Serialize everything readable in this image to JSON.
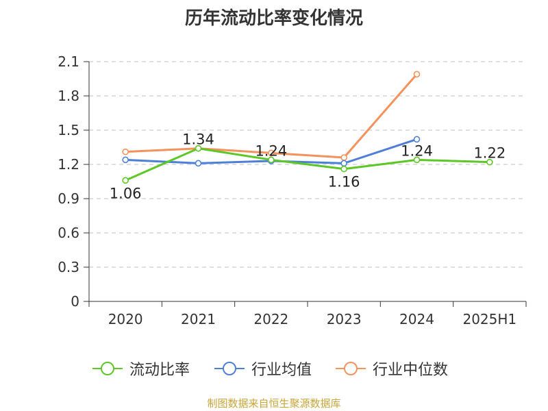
{
  "title": "历年流动比率变化情况",
  "source": "制图数据来自恒生聚源数据库",
  "colors": {
    "grid": "#cccccc",
    "axis": "#333333",
    "text": "#333333",
    "source": "#c8a43a"
  },
  "chart_data": {
    "type": "line",
    "title": "历年流动比率变化情况",
    "xlabel": "",
    "ylabel": "",
    "categories": [
      "2020",
      "2021",
      "2022",
      "2023",
      "2024",
      "2025H1"
    ],
    "ylim": [
      0,
      2.1
    ],
    "yticks": [
      0,
      0.3,
      0.6,
      0.9,
      1.2,
      1.5,
      1.8,
      2.1
    ],
    "ytick_labels": [
      "0",
      "0.3",
      "0.6",
      "0.9",
      "1.2",
      "1.5",
      "1.8",
      "2.1"
    ],
    "grid": true,
    "legend_position": "bottom",
    "series": [
      {
        "name": "流动比率",
        "color": "#5dc728",
        "values": [
          1.06,
          1.34,
          1.24,
          1.16,
          1.24,
          1.22
        ],
        "labels": [
          "1.06",
          "1.34",
          "1.24",
          "1.16",
          "1.24",
          "1.22"
        ]
      },
      {
        "name": "行业均值",
        "color": "#4d7fd9",
        "values": [
          1.24,
          1.21,
          1.23,
          1.21,
          1.42,
          null
        ]
      },
      {
        "name": "行业中位数",
        "color": "#f5915a",
        "values": [
          1.31,
          1.34,
          1.3,
          1.26,
          1.99,
          null
        ]
      }
    ]
  }
}
